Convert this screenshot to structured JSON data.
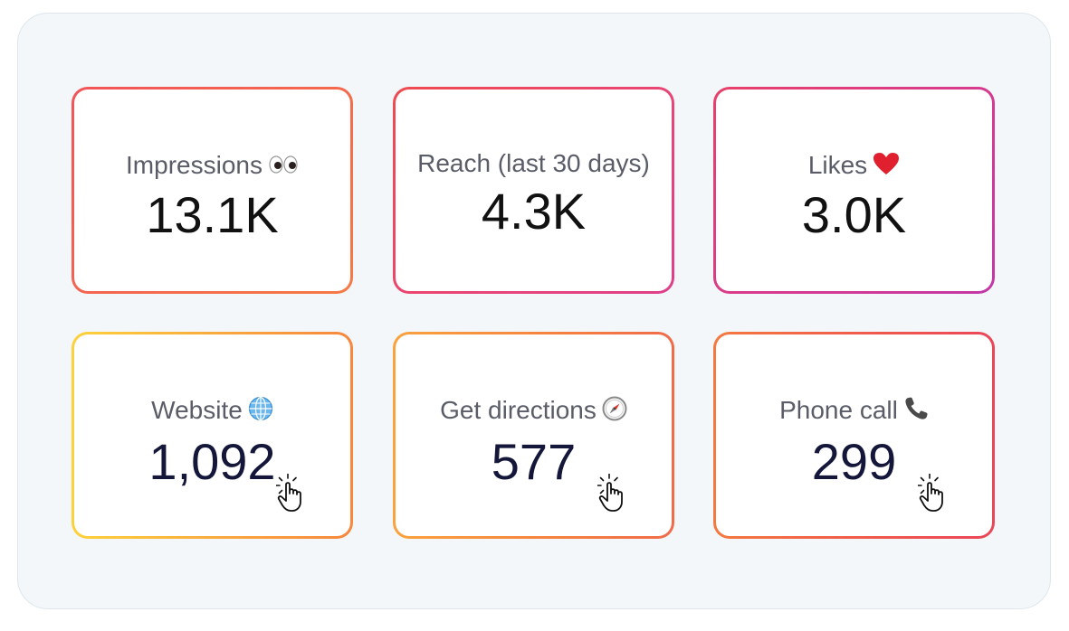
{
  "cards": [
    {
      "label": "Impressions",
      "value": "13.1K",
      "icon": "eyes-icon"
    },
    {
      "label": "Reach (last 30 days)",
      "value": "4.3K",
      "icon": null
    },
    {
      "label": "Likes",
      "value": "3.0K",
      "icon": "heart-icon"
    },
    {
      "label": "Website",
      "value": "1,092",
      "icon": "globe-icon",
      "clickable_hint": "tap-hand-icon"
    },
    {
      "label": "Get directions",
      "value": "577",
      "icon": "compass-icon",
      "clickable_hint": "tap-hand-icon"
    },
    {
      "label": "Phone call",
      "value": "299",
      "icon": "phone-icon",
      "clickable_hint": "tap-hand-icon"
    }
  ],
  "colors": {
    "panel_bg": "#f4f7f9",
    "label_text": "#5a5d68",
    "top_value_text": "#111111",
    "bottom_value_text": "#14163a",
    "gradient_yellow": "#fcd23c",
    "gradient_orange": "#f7873d",
    "gradient_red": "#ee4653",
    "gradient_magenta": "#c238a7"
  }
}
